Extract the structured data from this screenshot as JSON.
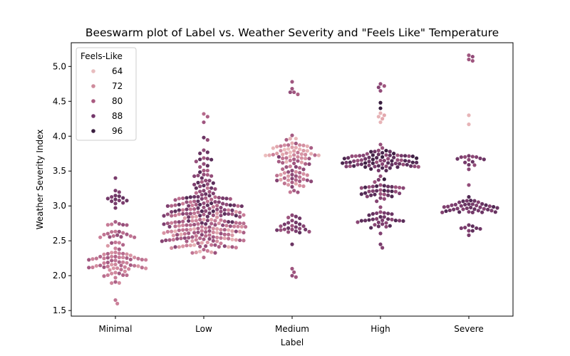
{
  "chart_data": {
    "type": "scatter",
    "subtype": "beeswarm",
    "title": "Beeswarm plot of Label vs. Weather Severity and \"Feels Like\" Temperature",
    "xlabel": "Label",
    "ylabel": "Weather Severity Index",
    "categories": [
      "Minimal",
      "Low",
      "Medium",
      "High",
      "Severe"
    ],
    "ylim": [
      1.42,
      5.34
    ],
    "yticks": [
      1.5,
      2.0,
      2.5,
      3.0,
      3.5,
      4.0,
      4.5,
      5.0
    ],
    "ytick_labels": [
      "1.5",
      "2.0",
      "2.5",
      "3.0",
      "3.5",
      "4.0",
      "4.5",
      "5.0"
    ],
    "grid": false,
    "legend": {
      "title": "Feels-Like",
      "position": "top-left",
      "entries": [
        {
          "label": "64",
          "color": "#e8bdbf"
        },
        {
          "label": "72",
          "color": "#cf8c9c"
        },
        {
          "label": "80",
          "color": "#a95a80"
        },
        {
          "label": "88",
          "color": "#74376b"
        },
        {
          "label": "96",
          "color": "#3a1e3f"
        }
      ]
    },
    "colorscale": {
      "min": 60,
      "max": 98,
      "stops": [
        "#f0cdc9",
        "#e2a6ad",
        "#c97d98",
        "#a55a82",
        "#7c3d6e",
        "#532a55",
        "#2c1733"
      ]
    },
    "series": [
      {
        "category": "Minimal",
        "clusters": [
          {
            "center": 2.2,
            "spread": 0.28,
            "count": 72,
            "feels": [
              68,
              80
            ]
          },
          {
            "center": 2.65,
            "spread": 0.12,
            "count": 18,
            "feels": [
              72,
              82
            ]
          },
          {
            "center": 3.1,
            "spread": 0.1,
            "count": 14,
            "feels": [
              84,
              90
            ]
          }
        ],
        "extra": [
          {
            "y": 3.4,
            "feels": 86
          },
          {
            "y": 1.6,
            "feels": 72
          },
          {
            "y": 1.65,
            "feels": 74
          }
        ]
      },
      {
        "category": "Low",
        "clusters": [
          {
            "center": 2.6,
            "spread": 0.22,
            "count": 130,
            "feels": [
              64,
              84
            ]
          },
          {
            "center": 2.95,
            "spread": 0.25,
            "count": 110,
            "feels": [
              72,
              92
            ]
          },
          {
            "center": 3.5,
            "spread": 0.25,
            "count": 30,
            "feels": [
              78,
              92
            ]
          }
        ],
        "extra": [
          {
            "y": 4.32,
            "feels": 76
          },
          {
            "y": 4.28,
            "feels": 78
          },
          {
            "y": 4.2,
            "feels": 80
          },
          {
            "y": 3.98,
            "feels": 88
          }
        ]
      },
      {
        "category": "Medium",
        "clusters": [
          {
            "center": 3.75,
            "spread": 0.18,
            "count": 55,
            "feels": [
              62,
              80
            ]
          },
          {
            "center": 3.45,
            "spread": 0.18,
            "count": 40,
            "feels": [
              66,
              86
            ]
          },
          {
            "center": 2.75,
            "spread": 0.12,
            "count": 24,
            "feels": [
              80,
              90
            ]
          }
        ],
        "extra": [
          {
            "y": 4.78,
            "feels": 80
          },
          {
            "y": 4.68,
            "feels": 80
          },
          {
            "y": 4.63,
            "feels": 80
          },
          {
            "y": 4.63,
            "feels": 82
          },
          {
            "y": 4.6,
            "feels": 78
          },
          {
            "y": 2.45,
            "feels": 88
          },
          {
            "y": 2.1,
            "feels": 80
          },
          {
            "y": 2.05,
            "feels": 80
          },
          {
            "y": 2.0,
            "feels": 82
          },
          {
            "y": 1.98,
            "feels": 80
          }
        ]
      },
      {
        "category": "High",
        "clusters": [
          {
            "center": 3.62,
            "spread": 0.16,
            "count": 80,
            "feels": [
              80,
              96
            ]
          },
          {
            "center": 3.2,
            "spread": 0.15,
            "count": 36,
            "feels": [
              80,
              94
            ]
          },
          {
            "center": 2.8,
            "spread": 0.14,
            "count": 30,
            "feels": [
              82,
              92
            ]
          }
        ],
        "extra": [
          {
            "y": 4.75,
            "feels": 82
          },
          {
            "y": 4.72,
            "feels": 80
          },
          {
            "y": 4.7,
            "feels": 84
          },
          {
            "y": 4.65,
            "feels": 82
          },
          {
            "y": 4.48,
            "feels": 96
          },
          {
            "y": 4.4,
            "feels": 96
          },
          {
            "y": 4.33,
            "feels": 64
          },
          {
            "y": 4.3,
            "feels": 66
          },
          {
            "y": 4.28,
            "feels": 64
          },
          {
            "y": 4.25,
            "feels": 66
          },
          {
            "y": 4.2,
            "feels": 64
          },
          {
            "y": 2.45,
            "feels": 86
          },
          {
            "y": 2.4,
            "feels": 84
          }
        ]
      },
      {
        "category": "Severe",
        "clusters": [
          {
            "center": 2.98,
            "spread": 0.1,
            "count": 40,
            "feels": [
              84,
              92
            ]
          },
          {
            "center": 3.65,
            "spread": 0.1,
            "count": 14,
            "feels": [
              82,
              90
            ]
          },
          {
            "center": 2.68,
            "spread": 0.05,
            "count": 8,
            "feels": [
              84,
              90
            ]
          }
        ],
        "extra": [
          {
            "y": 5.16,
            "feels": 80
          },
          {
            "y": 5.14,
            "feels": 82
          },
          {
            "y": 5.1,
            "feels": 80
          },
          {
            "y": 5.08,
            "feels": 80
          },
          {
            "y": 4.3,
            "feels": 64
          },
          {
            "y": 4.17,
            "feels": 64
          },
          {
            "y": 3.3,
            "feels": 82
          },
          {
            "y": 2.58,
            "feels": 86
          }
        ]
      }
    ]
  }
}
